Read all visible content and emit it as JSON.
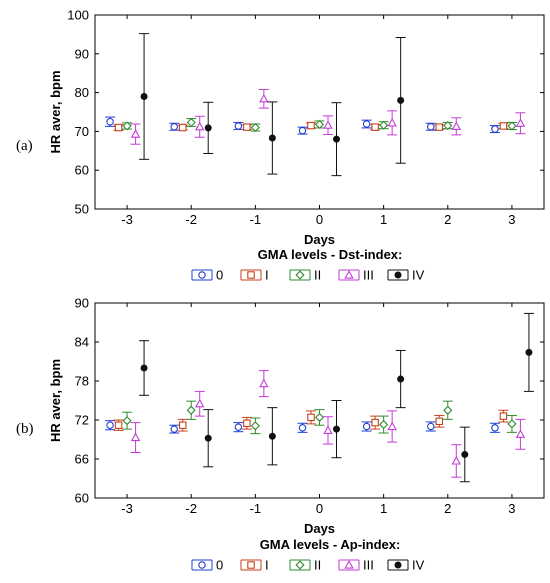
{
  "chart_data": [
    {
      "type": "errorbar",
      "panel_label": "(a)",
      "ylabel": "HR aver, bpm",
      "xlabel": "Days",
      "legend_title": "GMA levels - Dst-index:",
      "categories": [
        "-3",
        "-2",
        "-1",
        "0",
        "1",
        "2",
        "3"
      ],
      "yticks": [
        50,
        60,
        70,
        80,
        90,
        100
      ],
      "ylim": [
        50,
        100
      ],
      "grid": false,
      "legend_position": "bottom",
      "series": [
        {
          "name": "0",
          "color": "#1f3fd0",
          "marker": "circle-open",
          "values": [
            72.5,
            71.2,
            71.4,
            70.2,
            71.9,
            71.2,
            70.6
          ],
          "lower": [
            71.3,
            70.3,
            70.5,
            69.3,
            70.9,
            70.3,
            69.7
          ],
          "upper": [
            73.7,
            72.1,
            72.3,
            71.1,
            72.9,
            72.1,
            71.5
          ]
        },
        {
          "name": "I",
          "color": "#c8401a",
          "marker": "square-open",
          "values": [
            71.0,
            71.0,
            71.1,
            71.5,
            71.1,
            71.1,
            71.4
          ],
          "lower": [
            70.3,
            70.4,
            70.5,
            70.8,
            70.4,
            70.5,
            70.7
          ],
          "upper": [
            71.7,
            71.6,
            71.7,
            72.2,
            71.8,
            71.7,
            72.1
          ]
        },
        {
          "name": "II",
          "color": "#2e8b2e",
          "marker": "diamond-open",
          "values": [
            71.4,
            72.3,
            71.0,
            71.8,
            71.6,
            71.5,
            71.4
          ],
          "lower": [
            70.6,
            71.3,
            70.1,
            70.9,
            70.7,
            70.7,
            70.5
          ],
          "upper": [
            72.2,
            73.3,
            71.9,
            72.7,
            72.5,
            72.3,
            72.3
          ]
        },
        {
          "name": "III",
          "color": "#c43bd6",
          "marker": "triangle-open",
          "values": [
            69.3,
            71.2,
            78.4,
            71.6,
            72.2,
            71.3,
            72.1
          ],
          "lower": [
            66.7,
            68.5,
            76.0,
            69.2,
            69.1,
            69.1,
            69.4
          ],
          "upper": [
            71.9,
            73.9,
            80.8,
            74.0,
            75.3,
            73.5,
            74.8
          ]
        },
        {
          "name": "IV",
          "color": "#111111",
          "marker": "circle-filled",
          "values": [
            79.0,
            70.9,
            68.3,
            68.0,
            78.0,
            null,
            null
          ],
          "lower": [
            62.8,
            64.3,
            59.0,
            58.6,
            61.8,
            null,
            null
          ],
          "upper": [
            95.2,
            77.5,
            77.6,
            77.4,
            94.2,
            null,
            null
          ]
        }
      ]
    },
    {
      "type": "errorbar",
      "panel_label": "(b)",
      "ylabel": "HR aver, bpm",
      "xlabel": "Days",
      "legend_title": "GMA levels - Ap-index:",
      "categories": [
        "-3",
        "-2",
        "-1",
        "0",
        "1",
        "2",
        "3"
      ],
      "yticks": [
        60,
        66,
        72,
        78,
        84,
        90
      ],
      "ylim": [
        60,
        90
      ],
      "grid": false,
      "legend_position": "bottom",
      "series": [
        {
          "name": "0",
          "color": "#1f3fd0",
          "marker": "circle-open",
          "values": [
            71.2,
            70.6,
            70.9,
            70.8,
            71.0,
            71.0,
            70.8
          ],
          "lower": [
            70.5,
            70.0,
            70.2,
            70.1,
            70.3,
            70.3,
            70.1
          ],
          "upper": [
            71.9,
            71.2,
            71.6,
            71.5,
            71.7,
            71.7,
            71.5
          ]
        },
        {
          "name": "I",
          "color": "#c8401a",
          "marker": "square-open",
          "values": [
            71.2,
            71.2,
            71.5,
            72.4,
            71.6,
            71.8,
            72.6
          ],
          "lower": [
            70.4,
            70.3,
            70.6,
            71.4,
            70.6,
            70.9,
            71.7
          ],
          "upper": [
            72.0,
            72.1,
            72.4,
            73.4,
            72.6,
            72.7,
            73.5
          ]
        },
        {
          "name": "II",
          "color": "#2e8b2e",
          "marker": "diamond-open",
          "values": [
            71.9,
            73.5,
            71.1,
            72.4,
            71.3,
            73.5,
            71.4
          ],
          "lower": [
            70.6,
            72.1,
            69.9,
            71.2,
            70.0,
            72.1,
            70.1
          ],
          "upper": [
            73.2,
            74.9,
            72.3,
            73.6,
            72.6,
            74.9,
            72.7
          ]
        },
        {
          "name": "III",
          "color": "#c43bd6",
          "marker": "triangle-open",
          "values": [
            69.3,
            74.5,
            77.6,
            70.4,
            71.0,
            65.7,
            69.8
          ],
          "lower": [
            67.0,
            72.6,
            75.6,
            68.3,
            68.6,
            63.2,
            67.5
          ],
          "upper": [
            71.6,
            76.4,
            79.6,
            72.5,
            73.4,
            68.2,
            72.1
          ]
        },
        {
          "name": "IV",
          "color": "#111111",
          "marker": "circle-filled",
          "values": [
            80.0,
            69.2,
            69.5,
            70.6,
            78.3,
            66.7,
            82.4
          ],
          "lower": [
            75.8,
            64.8,
            65.1,
            66.2,
            73.9,
            62.5,
            76.4
          ],
          "upper": [
            84.2,
            73.6,
            73.9,
            75.0,
            82.7,
            70.9,
            88.4
          ]
        }
      ]
    }
  ]
}
